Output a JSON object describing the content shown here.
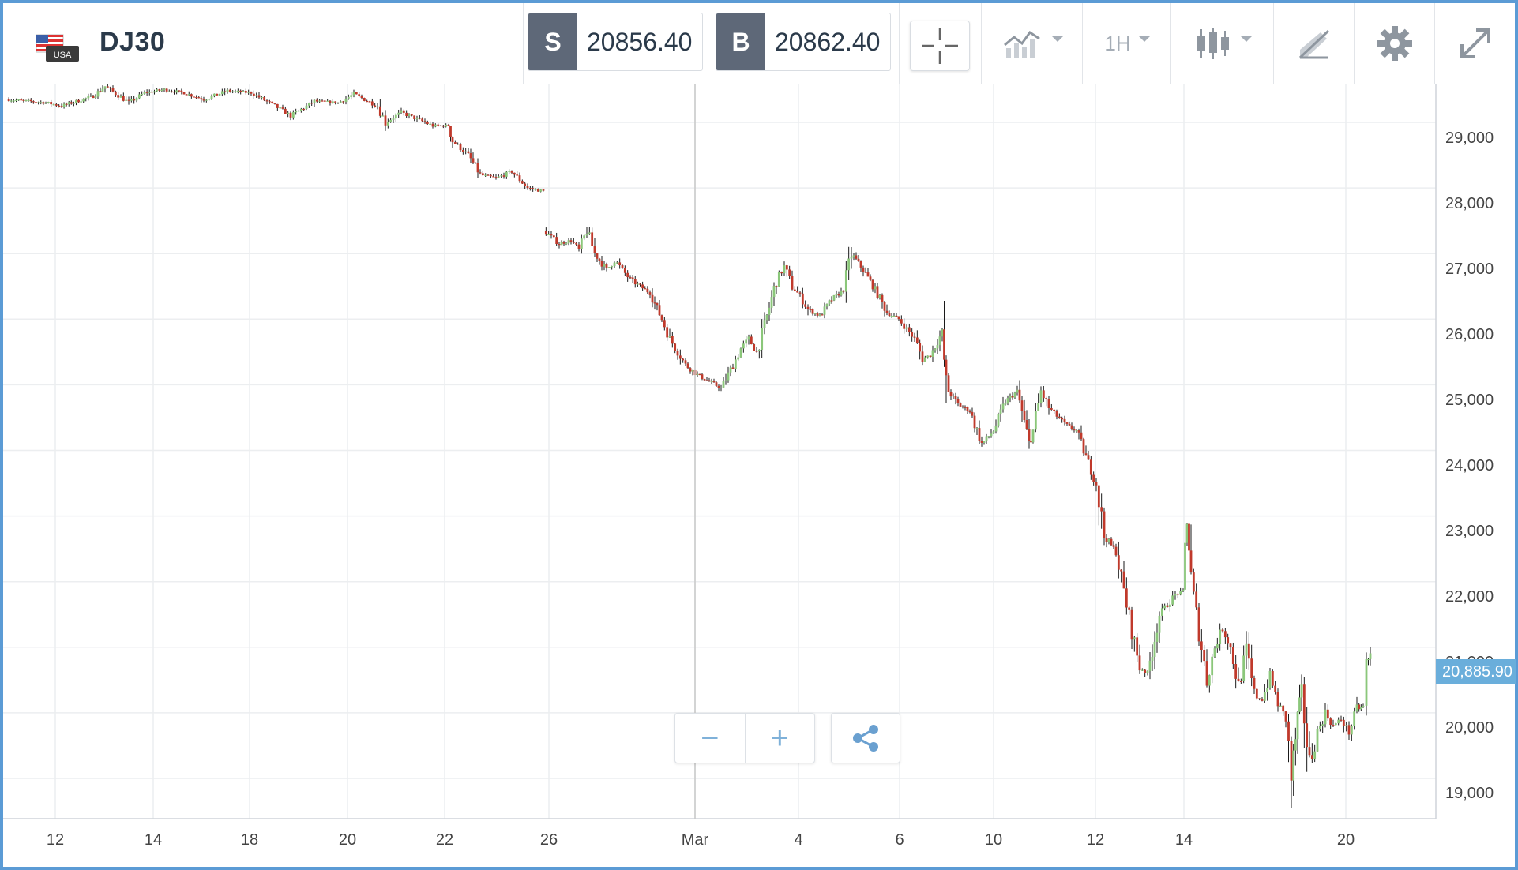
{
  "header": {
    "flag_label": "USA",
    "symbol": "DJ30",
    "sell": {
      "tag": "S",
      "price": "20856.40"
    },
    "buy": {
      "tag": "B",
      "price": "20862.40"
    },
    "timeframe": "1H"
  },
  "icons": {
    "crosshair": "crosshair-icon",
    "chart_type": "line-chart-icon",
    "candles": "candlestick-icon",
    "draw": "drawing-tools-icon",
    "settings": "gear-icon",
    "fullscreen": "expand-icon",
    "zoom_out": "minus-icon",
    "zoom_in": "plus-icon",
    "share": "share-icon"
  },
  "colors": {
    "up": "#8bc77a",
    "down": "#c0392b",
    "wick": "#1a1a1a",
    "last_price_bg": "#6aaedb",
    "border": "#5b9bd5"
  },
  "zoom": {
    "out": "−",
    "in": "+"
  },
  "last_price_label": "20,885.90",
  "chart_data": {
    "type": "candlestick",
    "title": "",
    "xlabel": "",
    "ylabel": "",
    "ylim": [
      18950,
      29750
    ],
    "y_ticks": [
      "29,000",
      "28,000",
      "27,000",
      "26,000",
      "25,000",
      "24,000",
      "23,000",
      "22,000",
      "21,000",
      "20,000",
      "19,000"
    ],
    "x_ticks": [
      "12",
      "14",
      "18",
      "20",
      "22",
      "26",
      "Mar",
      "4",
      "6",
      "10",
      "12",
      "14",
      "20"
    ],
    "last_price": 20885.9,
    "series": [
      {
        "points": [
          [
            0,
            29350
          ],
          [
            50,
            29300
          ],
          [
            70,
            29250
          ],
          [
            110,
            29400
          ],
          [
            125,
            29550
          ],
          [
            155,
            29300
          ],
          [
            175,
            29450
          ],
          [
            200,
            29500
          ],
          [
            225,
            29450
          ],
          [
            250,
            29350
          ],
          [
            280,
            29480
          ],
          [
            310,
            29450
          ],
          [
            340,
            29250
          ],
          [
            360,
            29100
          ],
          [
            390,
            29320
          ],
          [
            420,
            29300
          ],
          [
            440,
            29430
          ],
          [
            470,
            29250
          ],
          [
            480,
            29000
          ],
          [
            500,
            29150
          ],
          [
            520,
            29050
          ],
          [
            540,
            28950
          ],
          [
            560,
            28950
          ],
          [
            565,
            28720
          ],
          [
            585,
            28500
          ],
          [
            600,
            28200
          ],
          [
            620,
            28150
          ],
          [
            640,
            28250
          ],
          [
            660,
            28000
          ],
          [
            680,
            27950
          ],
          [
            680,
            27350
          ],
          [
            700,
            27150
          ],
          [
            715,
            27200
          ],
          [
            725,
            27050
          ],
          [
            735,
            27350
          ],
          [
            745,
            27000
          ],
          [
            760,
            26750
          ],
          [
            770,
            26900
          ],
          [
            790,
            26600
          ],
          [
            815,
            26400
          ],
          [
            830,
            26000
          ],
          [
            840,
            25700
          ],
          [
            860,
            25300
          ],
          [
            875,
            25150
          ],
          [
            890,
            25050
          ],
          [
            905,
            24950
          ],
          [
            920,
            25300
          ],
          [
            930,
            25550
          ],
          [
            940,
            25700
          ],
          [
            950,
            25500
          ],
          [
            960,
            25900
          ],
          [
            975,
            26600
          ],
          [
            985,
            26800
          ],
          [
            995,
            26500
          ],
          [
            1005,
            26350
          ],
          [
            1015,
            26150
          ],
          [
            1030,
            26050
          ],
          [
            1045,
            26300
          ],
          [
            1060,
            26450
          ],
          [
            1070,
            27000
          ],
          [
            1085,
            26750
          ],
          [
            1100,
            26450
          ],
          [
            1115,
            26100
          ],
          [
            1130,
            26000
          ],
          [
            1150,
            25700
          ],
          [
            1160,
            25400
          ],
          [
            1170,
            25450
          ],
          [
            1185,
            25800
          ],
          [
            1190,
            24950
          ],
          [
            1205,
            24700
          ],
          [
            1220,
            24600
          ],
          [
            1235,
            24100
          ],
          [
            1250,
            24300
          ],
          [
            1265,
            24750
          ],
          [
            1280,
            24900
          ],
          [
            1295,
            24100
          ],
          [
            1300,
            24300
          ],
          [
            1310,
            24900
          ],
          [
            1320,
            24650
          ],
          [
            1340,
            24400
          ],
          [
            1355,
            24300
          ],
          [
            1370,
            23800
          ],
          [
            1380,
            23500
          ],
          [
            1390,
            22700
          ],
          [
            1405,
            22450
          ],
          [
            1415,
            21850
          ],
          [
            1425,
            21250
          ],
          [
            1435,
            20700
          ],
          [
            1445,
            20600
          ],
          [
            1460,
            21500
          ],
          [
            1480,
            21800
          ],
          [
            1490,
            21850
          ],
          [
            1495,
            23100
          ],
          [
            1500,
            22000
          ],
          [
            1510,
            21250
          ],
          [
            1520,
            20500
          ],
          [
            1530,
            21000
          ],
          [
            1540,
            21300
          ],
          [
            1550,
            21000
          ],
          [
            1560,
            20400
          ],
          [
            1570,
            20950
          ],
          [
            1580,
            20250
          ],
          [
            1590,
            20200
          ],
          [
            1600,
            20550
          ],
          [
            1610,
            20150
          ],
          [
            1620,
            19900
          ],
          [
            1627,
            19000
          ],
          [
            1635,
            19900
          ],
          [
            1640,
            20300
          ],
          [
            1650,
            19200
          ],
          [
            1660,
            19700
          ],
          [
            1670,
            20000
          ],
          [
            1680,
            19800
          ],
          [
            1690,
            19900
          ],
          [
            1700,
            19700
          ],
          [
            1710,
            20050
          ],
          [
            1718,
            20100
          ],
          [
            1722,
            20700
          ],
          [
            1727,
            20885.9
          ]
        ]
      }
    ]
  }
}
